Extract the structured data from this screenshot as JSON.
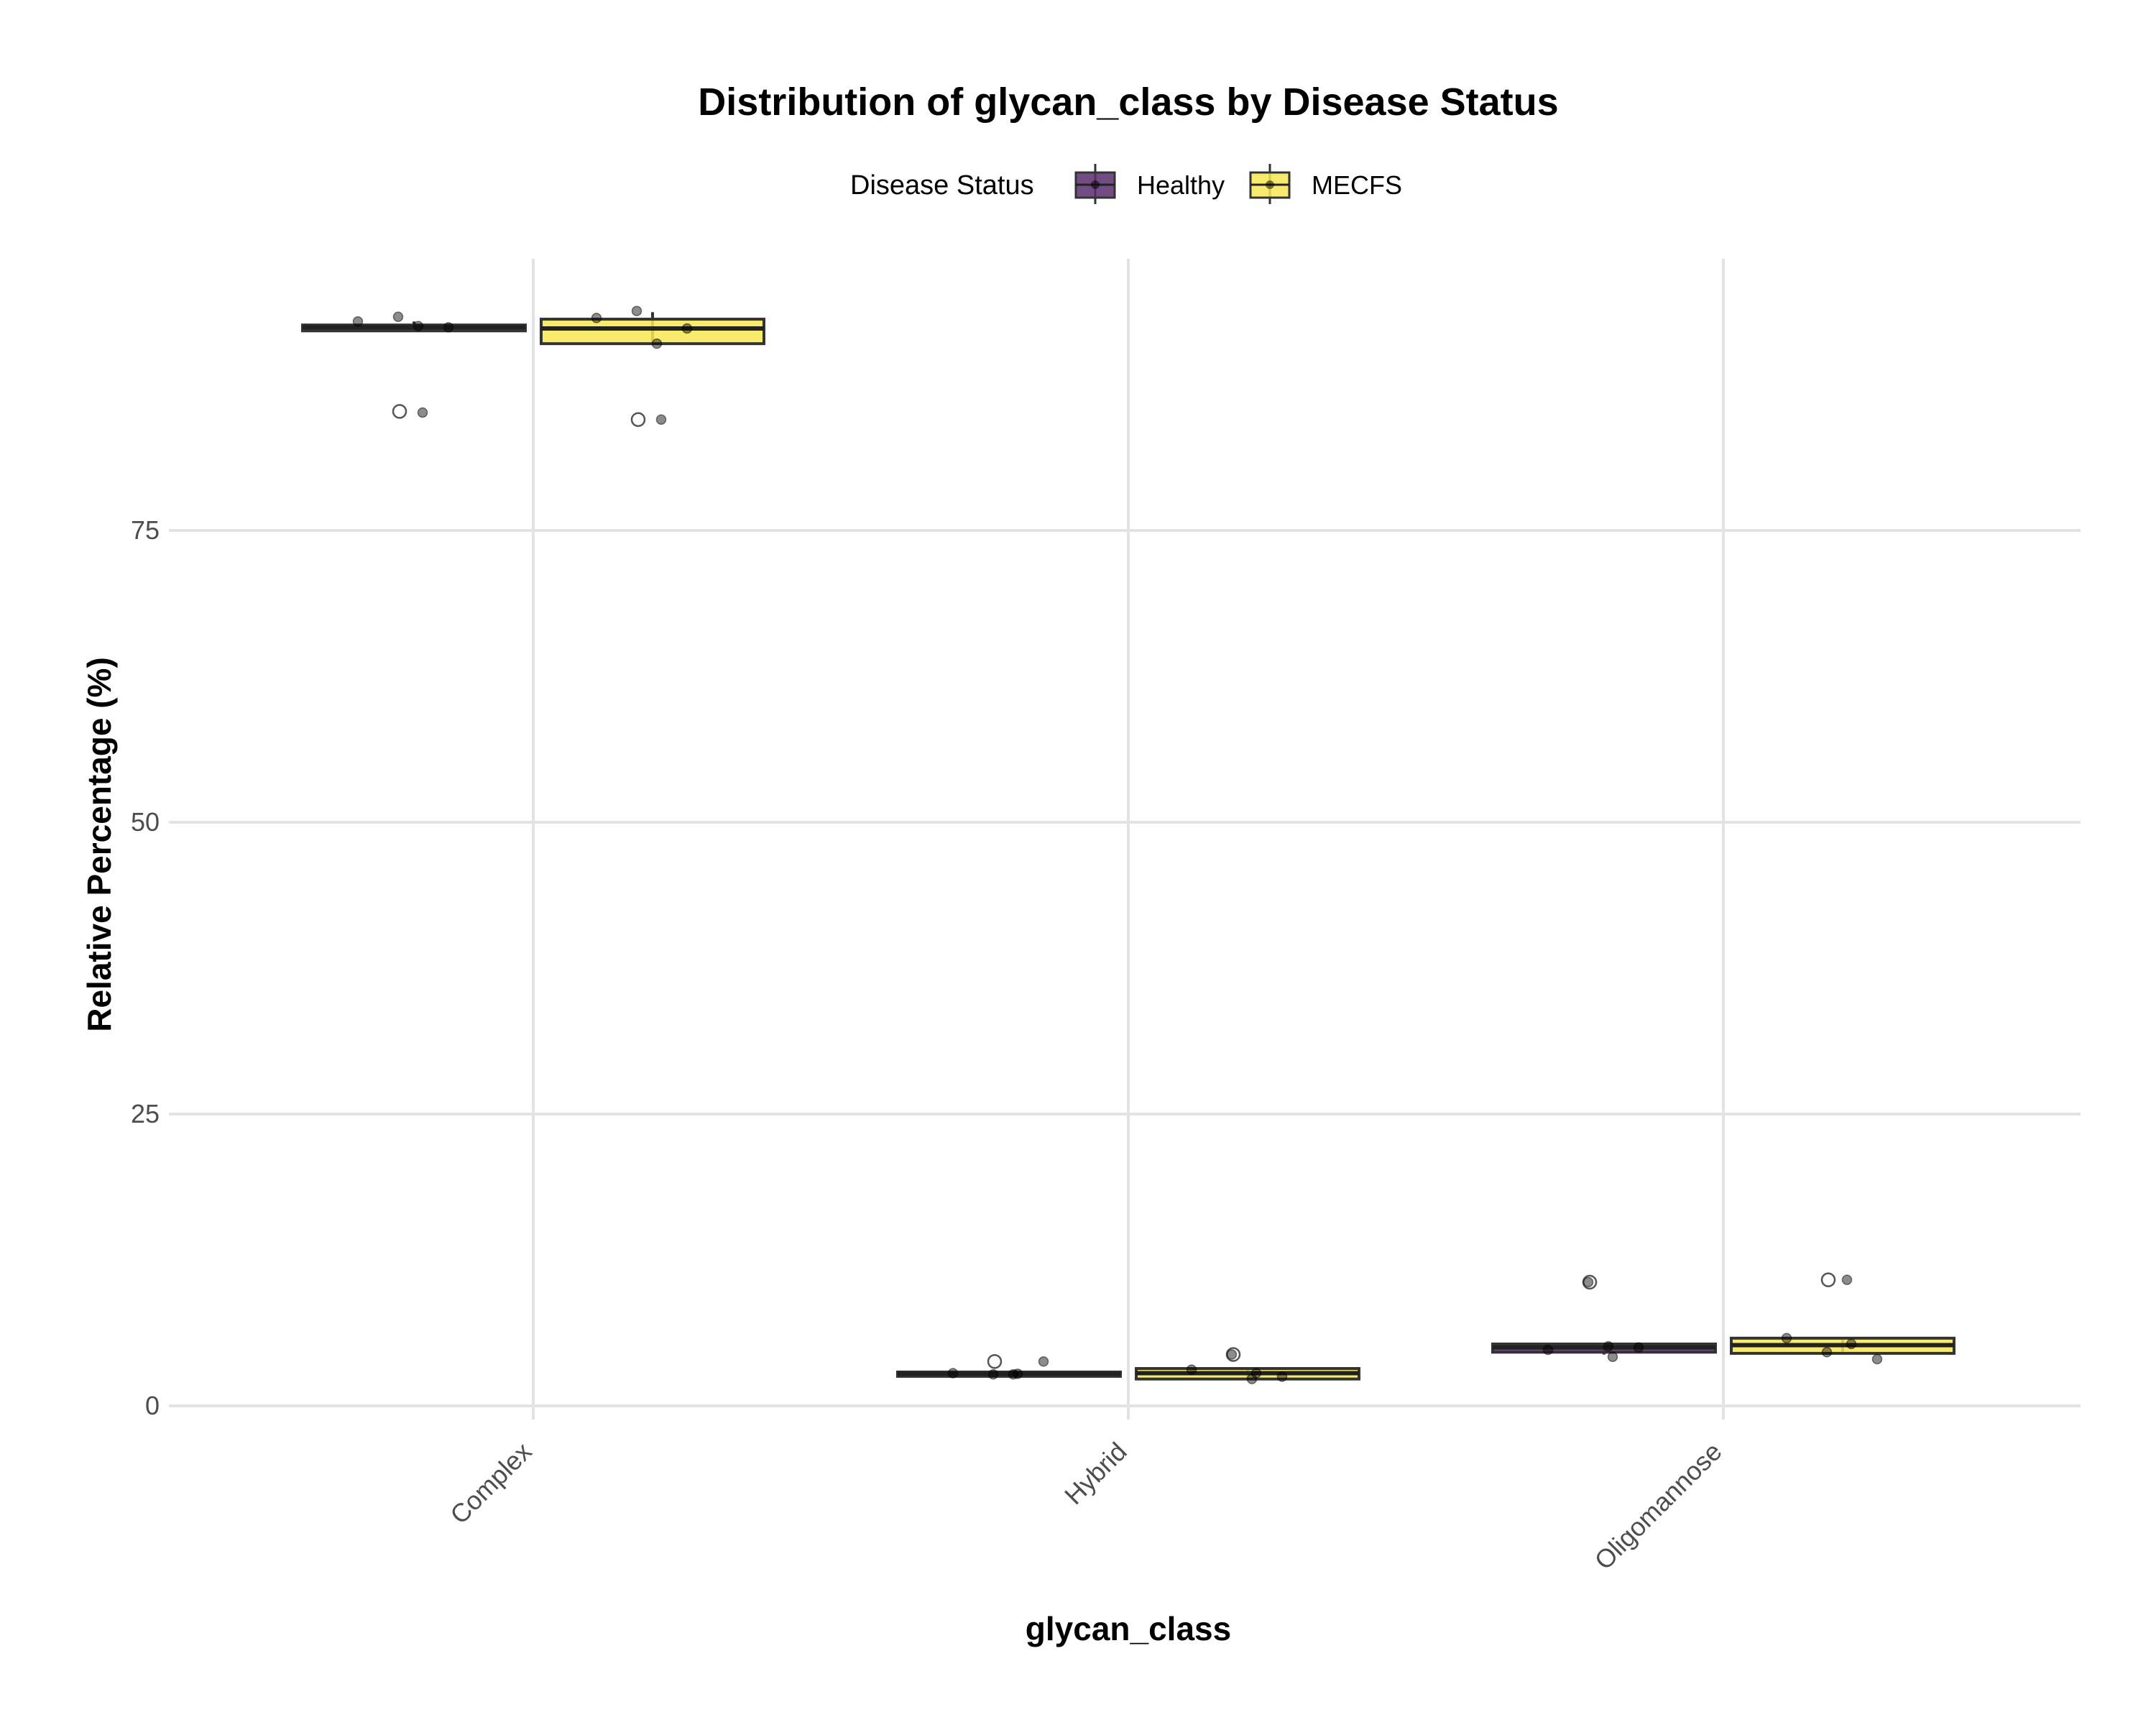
{
  "chart_data": {
    "type": "box",
    "title": "Distribution of glycan_class by Disease Status",
    "xlabel": "glycan_class",
    "ylabel": "Relative Percentage (%)",
    "categories": [
      "Complex",
      "Hybrid",
      "Oligomannose"
    ],
    "yticks": [
      0,
      25,
      50,
      75
    ],
    "ylim": [
      -4,
      98
    ],
    "grid": true,
    "legend": {
      "title": "Disease Status",
      "position": "top",
      "entries": [
        "Healthy",
        "MECFS"
      ]
    },
    "series": [
      {
        "name": "Healthy",
        "color": "#5b2d6f",
        "boxes": [
          {
            "category": "Complex",
            "q1": 92.1,
            "median": 92.4,
            "q3": 92.6,
            "whisker_low": 92.1,
            "whisker_high": 92.9,
            "outliers": [
              85.2
            ],
            "points": [
              92.9,
              93.3,
              92.5,
              92.4,
              85.1
            ]
          },
          {
            "category": "Hybrid",
            "q1": 2.6,
            "median": 2.75,
            "q3": 2.9,
            "whisker_low": 2.6,
            "whisker_high": 2.9,
            "outliers": [
              3.8
            ],
            "points": [
              2.8,
              2.7,
              2.7,
              3.8,
              2.75
            ]
          },
          {
            "category": "Oligomannose",
            "q1": 4.6,
            "median": 5.0,
            "q3": 5.3,
            "whisker_low": 4.4,
            "whisker_high": 5.3,
            "outliers": [
              10.6
            ],
            "points": [
              4.8,
              10.6,
              5.1,
              5.0,
              4.2
            ]
          }
        ]
      },
      {
        "name": "MECFS",
        "color": "#f7e654",
        "boxes": [
          {
            "category": "Complex",
            "q1": 91.0,
            "median": 92.3,
            "q3": 93.1,
            "whisker_low": 91.0,
            "whisker_high": 93.7,
            "outliers": [
              84.5
            ],
            "points": [
              93.2,
              93.8,
              91.0,
              92.3,
              84.5
            ]
          },
          {
            "category": "Hybrid",
            "q1": 2.3,
            "median": 2.8,
            "q3": 3.2,
            "whisker_low": 2.3,
            "whisker_high": 3.2,
            "outliers": [
              4.4
            ],
            "points": [
              3.1,
              4.4,
              2.3,
              2.5,
              2.8
            ]
          },
          {
            "category": "Oligomannose",
            "q1": 4.5,
            "median": 5.2,
            "q3": 5.8,
            "whisker_low": 4.5,
            "whisker_high": 5.8,
            "outliers": [
              10.8
            ],
            "points": [
              5.8,
              4.6,
              10.8,
              4.0,
              5.3
            ]
          }
        ]
      }
    ]
  }
}
